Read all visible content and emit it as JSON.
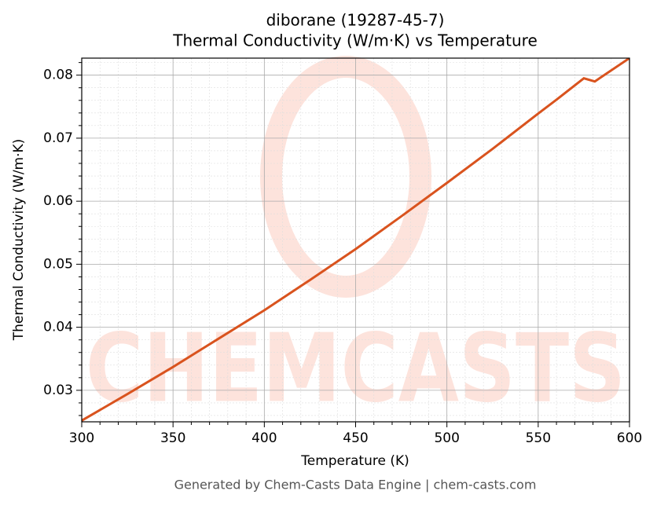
{
  "chart_data": {
    "type": "line",
    "title": "diborane (19287-45-7)",
    "subtitle": "Thermal Conductivity (W/m·K) vs Temperature",
    "x_label": "Temperature (K)",
    "y_label": "Thermal Conductivity (W/m·K)",
    "footer": "Generated by Chem-Casts Data Engine | chem-casts.com",
    "watermark": "CHEMCASTS",
    "x": [
      300,
      325,
      350,
      375,
      400,
      425,
      450,
      475,
      500,
      525,
      550,
      560,
      575,
      581,
      600
    ],
    "series": [
      {
        "name": "Thermal Conductivity",
        "color": "#d9531e",
        "values": [
          0.0252,
          0.0294,
          0.0337,
          0.0382,
          0.0427,
          0.0475,
          0.0524,
          0.0576,
          0.0629,
          0.0683,
          0.0739,
          0.0761,
          0.0795,
          0.079,
          0.0827
        ]
      }
    ],
    "xlim": [
      300,
      600
    ],
    "ylim": [
      0.025,
      0.0827
    ],
    "xticks": [
      300,
      350,
      400,
      450,
      500,
      550,
      600
    ],
    "yticks": [
      0.03,
      0.04,
      0.05,
      0.06,
      0.07,
      0.08
    ],
    "xminorticks": [
      310,
      320,
      330,
      340,
      360,
      370,
      380,
      390,
      410,
      420,
      430,
      440,
      460,
      470,
      480,
      490,
      510,
      520,
      530,
      540,
      560,
      570,
      580,
      590
    ],
    "yminorticks": [
      0.026,
      0.028,
      0.032,
      0.034,
      0.036,
      0.038,
      0.042,
      0.044,
      0.046,
      0.048,
      0.052,
      0.054,
      0.056,
      0.058,
      0.062,
      0.064,
      0.066,
      0.068,
      0.072,
      0.074,
      0.076,
      0.078,
      0.082
    ],
    "grid": true
  }
}
